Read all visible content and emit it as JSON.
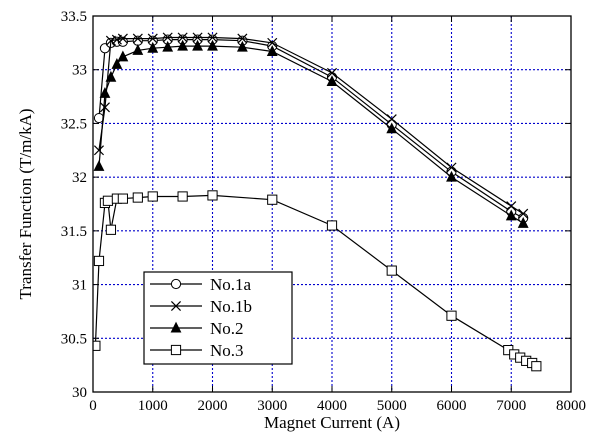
{
  "chart_data": {
    "type": "line",
    "title": "",
    "xlabel": "Magnet Current (A)",
    "ylabel": "Transfer Function (T/m/kA)",
    "xlim": [
      0,
      8000
    ],
    "ylim": [
      30,
      33.5
    ],
    "xticks": [
      0,
      1000,
      2000,
      3000,
      4000,
      5000,
      6000,
      7000,
      8000
    ],
    "yticks": [
      30,
      30.5,
      31,
      31.5,
      32,
      32.5,
      33,
      33.5
    ],
    "ytick_labels": [
      "30",
      "30.5",
      "31",
      "31.5",
      "32",
      "32.5",
      "33",
      "33.5"
    ],
    "grid": true,
    "grid_style": "dotted",
    "legend_position": "lower-left",
    "colors": {
      "grid": "#0000cc",
      "series": "#000000",
      "frame": "#000000"
    },
    "series": [
      {
        "name": "No.1a",
        "marker": "circle-open",
        "x": [
          100,
          200,
          300,
          400,
          500,
          750,
          1000,
          1250,
          1500,
          1750,
          2000,
          2500,
          3000,
          4000,
          5000,
          6000,
          7000,
          7200
        ],
        "y": [
          32.55,
          33.2,
          33.25,
          33.26,
          33.26,
          33.27,
          33.27,
          33.28,
          33.28,
          33.28,
          33.28,
          33.27,
          33.22,
          32.93,
          32.49,
          32.05,
          31.68,
          31.62
        ]
      },
      {
        "name": "No.1b",
        "marker": "x",
        "x": [
          100,
          200,
          300,
          400,
          500,
          750,
          1000,
          1250,
          1500,
          1750,
          2000,
          2500,
          3000,
          4000,
          5000,
          6000,
          7000,
          7200
        ],
        "y": [
          32.25,
          32.65,
          33.27,
          33.28,
          33.29,
          33.29,
          33.29,
          33.3,
          33.3,
          33.3,
          33.3,
          33.29,
          33.25,
          32.97,
          32.54,
          32.09,
          31.73,
          31.66
        ]
      },
      {
        "name": "No.2",
        "marker": "triangle-filled",
        "x": [
          100,
          200,
          300,
          400,
          500,
          750,
          1000,
          1250,
          1500,
          1750,
          2000,
          2500,
          3000,
          4000,
          5000,
          6000,
          7000,
          7200
        ],
        "y": [
          32.1,
          32.78,
          32.93,
          33.05,
          33.12,
          33.18,
          33.2,
          33.21,
          33.22,
          33.22,
          33.22,
          33.21,
          33.17,
          32.89,
          32.45,
          32.0,
          31.64,
          31.57
        ]
      },
      {
        "name": "No.3",
        "marker": "square-open",
        "x": [
          40,
          100,
          200,
          250,
          300,
          400,
          500,
          750,
          1000,
          1500,
          2000,
          3000,
          4000,
          5000,
          6000,
          6950,
          7050,
          7150,
          7250,
          7350,
          7420
        ],
        "y": [
          30.43,
          31.22,
          31.76,
          31.78,
          31.51,
          31.8,
          31.8,
          31.81,
          31.82,
          31.82,
          31.83,
          31.79,
          31.55,
          31.13,
          30.71,
          30.39,
          30.35,
          30.32,
          30.29,
          30.27,
          30.24
        ]
      }
    ]
  }
}
